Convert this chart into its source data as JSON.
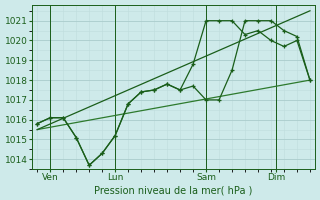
{
  "bg_color": "#ceeaea",
  "grid_color_major": "#aacccc",
  "grid_color_minor": "#bedddd",
  "line_dark": "#1a5e1a",
  "line_med": "#2d7a2d",
  "xlabel": "Pression niveau de la mer( hPa )",
  "ylim": [
    1013.5,
    1021.8
  ],
  "xlim": [
    -0.2,
    10.7
  ],
  "yticks": [
    1014,
    1015,
    1016,
    1017,
    1018,
    1019,
    1020,
    1021
  ],
  "xtick_labels": [
    "Ven",
    "Lun",
    "Sam",
    "Dim"
  ],
  "xtick_positions": [
    0.5,
    3.0,
    6.5,
    9.2
  ],
  "vline_positions": [
    0.5,
    3.0,
    6.5,
    9.2
  ],
  "line1_x": [
    0.0,
    0.5,
    1.0,
    1.5,
    2.0,
    2.5,
    3.0,
    3.5,
    4.0,
    4.5,
    5.0,
    5.5,
    6.0,
    6.5,
    7.0,
    7.5,
    8.0,
    8.5,
    9.0,
    9.5,
    10.0,
    10.5
  ],
  "line1_y": [
    1015.8,
    1016.1,
    1016.1,
    1015.1,
    1013.7,
    1014.3,
    1015.2,
    1016.8,
    1017.4,
    1017.5,
    1017.8,
    1017.5,
    1017.7,
    1017.0,
    1017.0,
    1018.5,
    1021.0,
    1021.0,
    1021.0,
    1020.5,
    1020.2,
    1018.0
  ],
  "line2_x": [
    0.0,
    0.5,
    1.0,
    1.5,
    2.0,
    2.5,
    3.0,
    3.5,
    4.0,
    4.5,
    5.0,
    5.5,
    6.0,
    6.5,
    7.0,
    7.5,
    8.0,
    8.5,
    9.0,
    9.5,
    10.0,
    10.5
  ],
  "line2_y": [
    1015.8,
    1016.1,
    1016.1,
    1015.1,
    1013.7,
    1014.3,
    1015.2,
    1016.8,
    1017.4,
    1017.5,
    1017.8,
    1017.5,
    1018.8,
    1021.0,
    1021.0,
    1021.0,
    1020.3,
    1020.5,
    1020.0,
    1019.7,
    1020.0,
    1018.0
  ],
  "trend1_x": [
    0.0,
    10.5
  ],
  "trend1_y": [
    1015.5,
    1018.0
  ],
  "trend2_x": [
    0.0,
    10.5
  ],
  "trend2_y": [
    1015.5,
    1021.5
  ]
}
